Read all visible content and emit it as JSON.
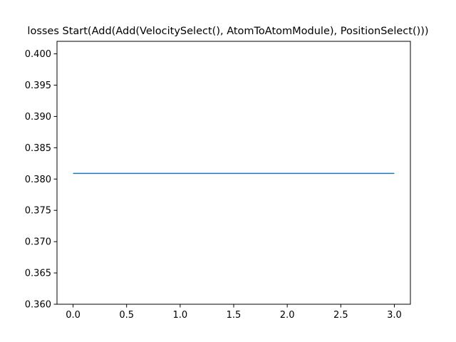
{
  "chart_data": {
    "type": "line",
    "title": "losses Start(Add(Add(VelocitySelect(), AtomToAtomModule), PositionSelect()))",
    "xlabel": "",
    "ylabel": "",
    "xlim": [
      -0.15,
      3.15
    ],
    "ylim": [
      0.36,
      0.402
    ],
    "xticks": [
      0.0,
      0.5,
      1.0,
      1.5,
      2.0,
      2.5,
      3.0
    ],
    "xtick_labels": [
      "0.0",
      "0.5",
      "1.0",
      "1.5",
      "2.0",
      "2.5",
      "3.0"
    ],
    "yticks": [
      0.36,
      0.365,
      0.37,
      0.375,
      0.38,
      0.385,
      0.39,
      0.395,
      0.4
    ],
    "ytick_labels": [
      "0.360",
      "0.365",
      "0.370",
      "0.375",
      "0.380",
      "0.385",
      "0.390",
      "0.395",
      "0.400"
    ],
    "grid": false,
    "series": [
      {
        "color": "#1f77b4",
        "x": [
          0,
          1,
          2,
          3
        ],
        "y": [
          0.3809,
          0.3809,
          0.3809,
          0.3809
        ]
      }
    ]
  }
}
